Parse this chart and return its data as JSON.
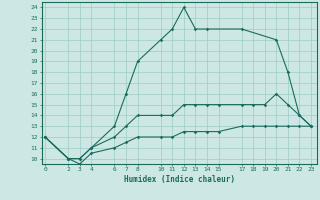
{
  "xlabel": "Humidex (Indice chaleur)",
  "bg_color": "#cde8e4",
  "grid_color": "#9eccc6",
  "line_color": "#1a6b5e",
  "xticks": [
    0,
    2,
    3,
    4,
    6,
    7,
    8,
    10,
    11,
    12,
    13,
    14,
    15,
    17,
    18,
    19,
    20,
    21,
    22,
    23
  ],
  "yticks": [
    10,
    11,
    12,
    13,
    14,
    15,
    16,
    17,
    18,
    19,
    20,
    21,
    22,
    23,
    24
  ],
  "xlim": [
    -0.3,
    23.5
  ],
  "ylim": [
    9.5,
    24.5
  ],
  "line1_x": [
    0,
    2,
    3,
    4,
    6,
    7,
    8,
    10,
    11,
    12,
    13,
    14,
    17,
    20,
    21,
    22,
    23
  ],
  "line1_y": [
    12,
    10,
    10,
    11,
    13,
    16,
    19,
    21,
    22,
    24,
    22,
    22,
    22,
    21,
    18,
    14,
    13
  ],
  "line2_x": [
    0,
    2,
    3,
    4,
    6,
    7,
    8,
    10,
    11,
    12,
    13,
    14,
    15,
    17,
    18,
    19,
    20,
    21,
    22,
    23
  ],
  "line2_y": [
    12,
    10,
    10,
    11,
    12,
    13,
    14,
    14,
    14,
    15,
    15,
    15,
    15,
    15,
    15,
    15,
    16,
    15,
    14,
    13
  ],
  "line3_x": [
    0,
    2,
    3,
    4,
    6,
    7,
    8,
    10,
    11,
    12,
    13,
    14,
    15,
    17,
    18,
    19,
    20,
    21,
    22,
    23
  ],
  "line3_y": [
    12,
    10,
    9.5,
    10.5,
    11,
    11.5,
    12,
    12,
    12,
    12.5,
    12.5,
    12.5,
    12.5,
    13,
    13,
    13,
    13,
    13,
    13,
    13
  ]
}
